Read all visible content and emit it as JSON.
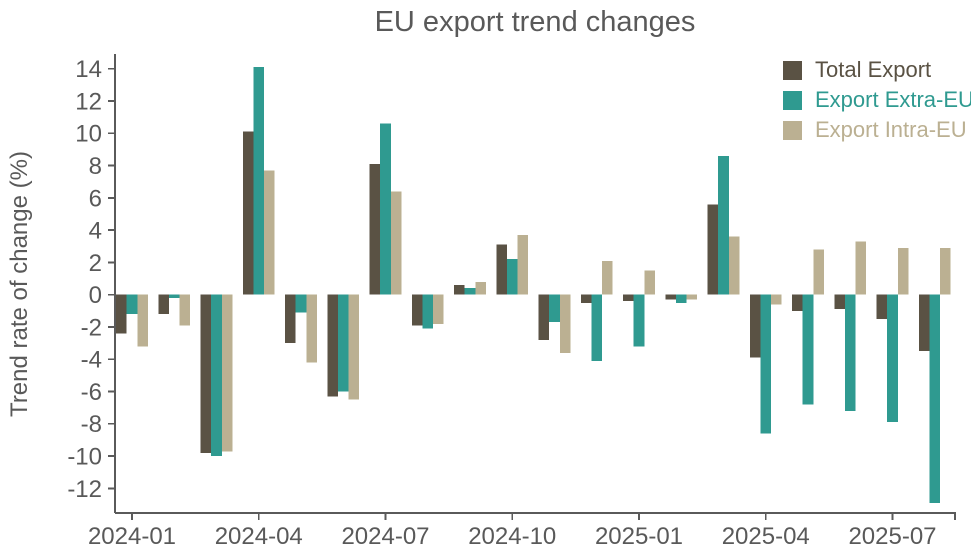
{
  "chart_data": {
    "type": "bar",
    "title": "EU export trend changes",
    "xlabel": "",
    "ylabel": "Trend rate of change (%)",
    "categories": [
      "2024-01",
      "2024-02",
      "2024-03",
      "2024-04",
      "2024-05",
      "2024-06",
      "2024-07",
      "2024-08",
      "2024-09",
      "2024-10",
      "2024-11",
      "2024-12",
      "2025-01",
      "2025-02",
      "2025-03",
      "2025-04",
      "2025-05",
      "2025-06",
      "2025-07",
      "2025-08"
    ],
    "x_tick_labels": [
      "2024-01",
      "2024-04",
      "2024-07",
      "2024-10",
      "2025-01",
      "2025-04",
      "2025-07"
    ],
    "x_tick_step": 3,
    "series": [
      {
        "name": "Total Export",
        "color": "#5a5244",
        "values": [
          -2.4,
          -1.2,
          -9.8,
          10.1,
          -3.0,
          -6.3,
          8.1,
          -1.9,
          0.6,
          3.1,
          -2.8,
          -0.5,
          -0.4,
          -0.3,
          5.6,
          -3.9,
          -1.0,
          -0.9,
          -1.5,
          -3.5
        ]
      },
      {
        "name": "Export Extra-EU",
        "color": "#2f9a90",
        "values": [
          -1.2,
          -0.2,
          -10.0,
          14.1,
          -1.1,
          -6.0,
          10.6,
          -2.1,
          0.4,
          2.2,
          -1.7,
          -4.1,
          -3.2,
          -0.5,
          8.6,
          -8.6,
          -6.8,
          -7.2,
          -7.9,
          -12.9
        ]
      },
      {
        "name": "Export Intra-EU",
        "color": "#bbb092",
        "values": [
          -3.2,
          -1.9,
          -9.7,
          7.7,
          -4.2,
          -6.5,
          6.4,
          -1.8,
          0.8,
          3.7,
          -3.6,
          2.1,
          1.5,
          -0.3,
          3.6,
          -0.6,
          2.8,
          3.3,
          2.9,
          2.9
        ]
      }
    ],
    "y_ticks": [
      14,
      12,
      10,
      8,
      6,
      4,
      2,
      0,
      -2,
      -4,
      -6,
      -8,
      -10,
      -12
    ],
    "ylim": [
      -13.5,
      14.9
    ],
    "grid": false,
    "legend_position": "upper right",
    "axis_color": "#5a5a5a",
    "text_color": "#595959",
    "background_color": "#ffffff"
  }
}
